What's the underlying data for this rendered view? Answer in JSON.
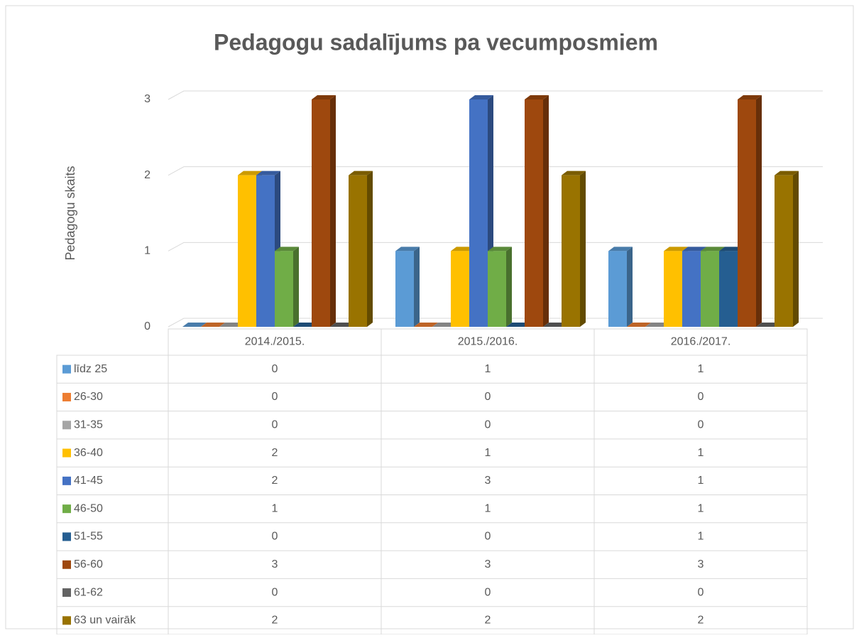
{
  "chart_data": {
    "type": "bar",
    "title": "Pedagogu sadalījums pa vecumposmiem",
    "y_label": "Pedagogu skaits",
    "categories": [
      "2014./2015.",
      "2015./2016.",
      "2016./2017."
    ],
    "series": [
      {
        "name": "līdz 25",
        "color": "#5b9bd5",
        "values": [
          0,
          1,
          1
        ]
      },
      {
        "name": "26-30",
        "color": "#ed7d31",
        "values": [
          0,
          0,
          0
        ]
      },
      {
        "name": "31-35",
        "color": "#a5a5a5",
        "values": [
          0,
          0,
          0
        ]
      },
      {
        "name": "36-40",
        "color": "#ffc000",
        "values": [
          2,
          1,
          1
        ]
      },
      {
        "name": "41-45",
        "color": "#4472c4",
        "values": [
          2,
          3,
          1
        ]
      },
      {
        "name": "46-50",
        "color": "#70ad47",
        "values": [
          1,
          1,
          1
        ]
      },
      {
        "name": "51-55",
        "color": "#255e91",
        "values": [
          0,
          0,
          1
        ]
      },
      {
        "name": "56-60",
        "color": "#9e480e",
        "values": [
          3,
          3,
          3
        ]
      },
      {
        "name": "61-62",
        "color": "#636363",
        "values": [
          0,
          0,
          0
        ]
      },
      {
        "name": "63 un vairāk",
        "color": "#997300",
        "values": [
          2,
          2,
          2
        ]
      }
    ],
    "ylim": [
      0,
      3
    ],
    "yticks": [
      0,
      1,
      2,
      3
    ],
    "grid": true
  }
}
